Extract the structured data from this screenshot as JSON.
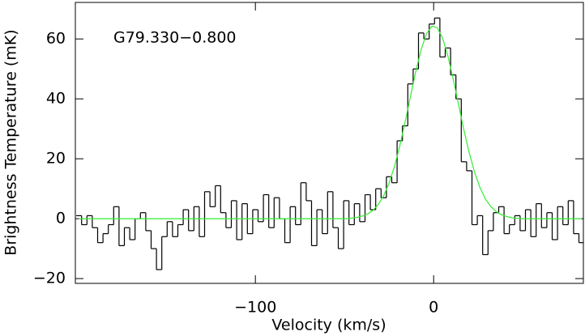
{
  "chart_data": {
    "type": "spectrum",
    "annotation": "G79.330−0.800",
    "xlabel": "Velocity (km/s)",
    "ylabel": "Brightness Temperature (mK)",
    "xlim": [
      -201,
      84
    ],
    "ylim": [
      -21.6,
      72.2
    ],
    "xticks": [
      {
        "value": -100,
        "label": "−100"
      },
      0
    ],
    "yticks": [
      {
        "value": -20,
        "label": "−20"
      },
      0,
      20,
      40,
      60
    ],
    "channel_width": 3,
    "x": [
      -199,
      -196,
      -193,
      -190,
      -187,
      -184,
      -181,
      -178,
      -175,
      -172,
      -169,
      -166,
      -163,
      -160,
      -157,
      -154,
      -151,
      -148,
      -145,
      -142,
      -139,
      -136,
      -133,
      -130,
      -127,
      -124,
      -121,
      -118,
      -115,
      -112,
      -109,
      -106,
      -103,
      -100,
      -97,
      -94,
      -91,
      -88,
      -85,
      -82,
      -79,
      -76,
      -73,
      -70,
      -67,
      -64,
      -61,
      -58,
      -55,
      -52,
      -49,
      -46,
      -43,
      -40,
      -37,
      -34,
      -31,
      -28,
      -25,
      -22,
      -19,
      -16,
      -13,
      -10,
      -7,
      -4,
      -1,
      2,
      5,
      8,
      11,
      14,
      17,
      20,
      23,
      26,
      29,
      32,
      35,
      38,
      41,
      44,
      47,
      50,
      53,
      56,
      59,
      62,
      65,
      68,
      71,
      74,
      77,
      80,
      83
    ],
    "series": [
      {
        "color": "#000000",
        "style": "steps",
        "values": [
          1,
          -2,
          1,
          -3,
          -8,
          -5,
          -2,
          4,
          -9,
          -3,
          -7,
          0,
          2,
          -4,
          -10,
          -17,
          -6,
          -1,
          -6,
          -2,
          3,
          -4,
          4,
          -6,
          9,
          4,
          11,
          2,
          -3,
          6,
          -7,
          5,
          -5,
          3,
          -1,
          8,
          -3,
          7,
          0,
          -8,
          4,
          -2,
          12,
          6,
          -9,
          3,
          -5,
          9,
          -3,
          -10,
          6,
          -2,
          5,
          -1,
          8,
          3,
          10,
          7,
          14,
          12,
          26,
          31,
          45,
          50,
          62,
          60,
          65,
          67,
          54,
          57,
          48,
          40,
          19,
          16,
          -2,
          1,
          -12,
          -4,
          2,
          4,
          -5,
          -2,
          1,
          -4,
          3,
          -6,
          5,
          -3,
          2,
          -7,
          4,
          -2,
          6,
          -5,
          -8
        ]
      },
      {
        "color": "#33ee33",
        "style": "line",
        "values": [
          0,
          0,
          0,
          0,
          0,
          0,
          0,
          0,
          0,
          0,
          0,
          0,
          0,
          0,
          0,
          0,
          0,
          0,
          0,
          0,
          0,
          0,
          0,
          0,
          0,
          0,
          0,
          0,
          0,
          0,
          0,
          0,
          0,
          0,
          0,
          0,
          0,
          0,
          0,
          0,
          0,
          0,
          0,
          0,
          0,
          0,
          0,
          0,
          0,
          0,
          0,
          0.2,
          0.4,
          0.9,
          1.6,
          2.8,
          4.8,
          7.7,
          11.9,
          17.4,
          24.3,
          32.3,
          40.8,
          49.2,
          56.5,
          61.8,
          64.3,
          63.8,
          60.3,
          54.3,
          46.5,
          38.0,
          29.5,
          21.9,
          15.4,
          10.4,
          6.6,
          4.1,
          2.4,
          1.3,
          0.7,
          0.3,
          0.1,
          0,
          0,
          0,
          0,
          0,
          0,
          0,
          0,
          0,
          0,
          0,
          0
        ]
      }
    ]
  }
}
